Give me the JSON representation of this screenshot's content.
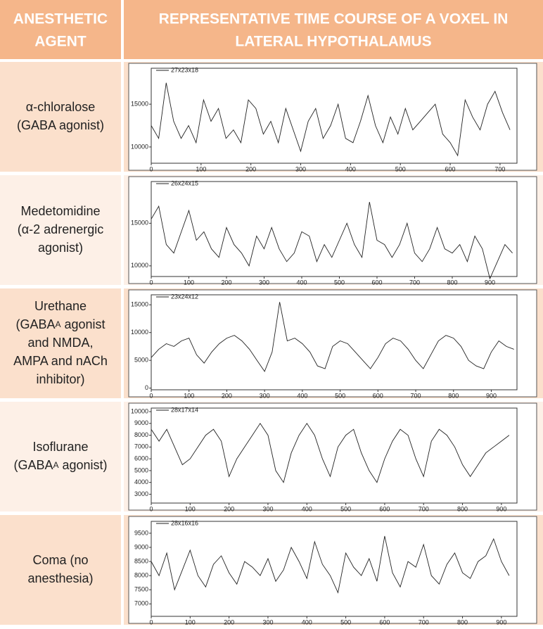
{
  "table": {
    "header": [
      [
        "ANESTHETIC",
        "AGENT"
      ],
      [
        "REPRESENTATIVE TIME COURSE OF A VOXEL IN",
        "LATERAL HYPOTHALAMUS"
      ]
    ],
    "rows": [
      {
        "agent": [
          [
            {
              "text": "α-chloralose"
            }
          ],
          [
            {
              "text": "(GABA agonist)"
            }
          ]
        ],
        "chart": {
          "type": "line",
          "legend": "27x23x18",
          "color": "#222",
          "xlim": [
            0,
            734
          ],
          "xticks": [
            0,
            100,
            200,
            300,
            400,
            500,
            600,
            700
          ],
          "ylim": [
            8100,
            19200
          ],
          "yticks": [
            10000,
            15000
          ],
          "x": [
            0,
            15,
            30,
            45,
            60,
            75,
            90,
            105,
            120,
            135,
            150,
            165,
            180,
            195,
            210,
            225,
            240,
            255,
            270,
            285,
            300,
            315,
            330,
            345,
            360,
            375,
            390,
            405,
            420,
            435,
            450,
            465,
            480,
            495,
            510,
            525,
            540,
            555,
            570,
            585,
            600,
            615,
            630,
            645,
            660,
            675,
            690,
            705,
            720
          ],
          "values": [
            12500,
            11000,
            17500,
            13000,
            11000,
            12500,
            10500,
            15500,
            13000,
            14500,
            11000,
            12000,
            10500,
            15500,
            14500,
            11500,
            13000,
            10500,
            14500,
            12000,
            9500,
            13000,
            14500,
            11000,
            12500,
            15000,
            11000,
            10500,
            13000,
            16000,
            12500,
            10500,
            13500,
            11500,
            14500,
            12000,
            13000,
            14000,
            15000,
            11500,
            10500,
            9000,
            15500,
            13500,
            12000,
            15000,
            16500,
            14000,
            12000
          ]
        }
      },
      {
        "agent": [
          [
            {
              "text": "Medetomidine"
            }
          ],
          [
            {
              "text": "(α-2 adrenergic"
            }
          ],
          [
            {
              "text": "agonist)"
            }
          ]
        ],
        "chart": {
          "type": "line",
          "legend": "26x24x15",
          "color": "#222",
          "xlim": [
            0,
            972
          ],
          "xticks": [
            0,
            100,
            200,
            300,
            400,
            500,
            600,
            700,
            800,
            900
          ],
          "ylim": [
            8750,
            19900
          ],
          "yticks": [
            10000,
            15000
          ],
          "x": [
            0,
            20,
            40,
            60,
            80,
            100,
            120,
            140,
            160,
            180,
            200,
            220,
            240,
            260,
            280,
            300,
            320,
            340,
            360,
            380,
            400,
            420,
            440,
            460,
            480,
            500,
            520,
            540,
            560,
            580,
            600,
            620,
            640,
            660,
            680,
            700,
            720,
            740,
            760,
            780,
            800,
            820,
            840,
            860,
            880,
            900,
            920,
            940,
            960
          ],
          "values": [
            15500,
            17000,
            12500,
            11500,
            14000,
            16500,
            13000,
            14000,
            12000,
            11000,
            14500,
            12500,
            11500,
            10000,
            13500,
            12000,
            14500,
            12000,
            10500,
            11500,
            14000,
            13500,
            10500,
            12500,
            11000,
            13000,
            15000,
            12500,
            11000,
            17500,
            13000,
            12500,
            11000,
            12500,
            15000,
            11500,
            10500,
            12000,
            14500,
            12000,
            11500,
            12500,
            10500,
            13500,
            12000,
            8500,
            10500,
            12500,
            11500
          ]
        }
      },
      {
        "agent": [
          [
            {
              "text": "Urethane"
            }
          ],
          [
            {
              "text": "(GABA"
            },
            {
              "text": "A",
              "small": true
            },
            {
              "text": " agonist"
            }
          ],
          [
            {
              "text": "and NMDA,"
            }
          ],
          [
            {
              "text": "AMPA and nACh"
            }
          ],
          [
            {
              "text": "inhibitor)"
            }
          ]
        ],
        "chart": {
          "type": "line",
          "legend": "23x24x12",
          "color": "#222",
          "xlim": [
            0,
            968
          ],
          "xticks": [
            0,
            100,
            200,
            300,
            400,
            500,
            600,
            700,
            800,
            900
          ],
          "ylim": [
            -300,
            16800
          ],
          "yticks": [
            0,
            5000,
            10000,
            15000
          ],
          "x": [
            0,
            20,
            40,
            60,
            80,
            100,
            120,
            140,
            160,
            180,
            200,
            220,
            240,
            260,
            280,
            300,
            320,
            340,
            360,
            380,
            400,
            420,
            440,
            460,
            480,
            500,
            520,
            540,
            560,
            580,
            600,
            620,
            640,
            660,
            680,
            700,
            720,
            740,
            760,
            780,
            800,
            820,
            840,
            860,
            880,
            900,
            920,
            940,
            960
          ],
          "values": [
            5500,
            7000,
            8000,
            7500,
            8500,
            9000,
            6000,
            4500,
            6500,
            8000,
            9000,
            9500,
            8500,
            7000,
            5000,
            3000,
            6500,
            15500,
            8500,
            9000,
            8000,
            6500,
            4000,
            3500,
            7500,
            8500,
            8000,
            6500,
            5000,
            3500,
            5500,
            8000,
            9000,
            8500,
            7000,
            5000,
            3500,
            6000,
            8500,
            9500,
            9000,
            7500,
            5000,
            4000,
            3500,
            6500,
            8500,
            7500,
            7000
          ]
        }
      },
      {
        "agent": [
          [
            {
              "text": "Isoflurane"
            }
          ],
          [
            {
              "text": "(GABA"
            },
            {
              "text": "A",
              "small": true
            },
            {
              "text": " agonist)"
            }
          ]
        ],
        "chart": {
          "type": "line",
          "legend": "28x17x14",
          "color": "#222",
          "xlim": [
            0,
            940
          ],
          "xticks": [
            0,
            100,
            200,
            300,
            400,
            500,
            600,
            700,
            800,
            900
          ],
          "ylim": [
            2250,
            10300
          ],
          "yticks": [
            3000,
            4000,
            5000,
            6000,
            7000,
            8000,
            9000,
            10000
          ],
          "x": [
            0,
            20,
            40,
            60,
            80,
            100,
            120,
            140,
            160,
            180,
            200,
            220,
            240,
            260,
            280,
            300,
            320,
            340,
            360,
            380,
            400,
            420,
            440,
            460,
            480,
            500,
            520,
            540,
            560,
            580,
            600,
            620,
            640,
            660,
            680,
            700,
            720,
            740,
            760,
            780,
            800,
            820,
            840,
            860,
            880,
            900,
            920
          ],
          "values": [
            8500,
            7500,
            8500,
            7000,
            5500,
            6000,
            7000,
            8000,
            8500,
            7500,
            4500,
            6000,
            7000,
            8000,
            9000,
            8000,
            5000,
            4000,
            6500,
            8000,
            9000,
            8000,
            6000,
            4500,
            7000,
            8000,
            8500,
            6500,
            5000,
            4000,
            6000,
            7500,
            8500,
            8000,
            6000,
            4500,
            7500,
            8500,
            8000,
            7000,
            5500,
            4500,
            5500,
            6500,
            7000,
            7500,
            8000
          ]
        }
      },
      {
        "agent": [
          [
            {
              "text": "Coma (no"
            }
          ],
          [
            {
              "text": "anesthesia)"
            }
          ]
        ],
        "chart": {
          "type": "line",
          "legend": "28x16x16",
          "color": "#222",
          "xlim": [
            0,
            940
          ],
          "xticks": [
            0,
            100,
            200,
            300,
            400,
            500,
            600,
            700,
            800,
            900
          ],
          "ylim": [
            6560,
            9920
          ],
          "yticks": [
            7000,
            7500,
            8000,
            8500,
            9000,
            9500
          ],
          "x": [
            0,
            20,
            40,
            60,
            80,
            100,
            120,
            140,
            160,
            180,
            200,
            220,
            240,
            260,
            280,
            300,
            320,
            340,
            360,
            380,
            400,
            420,
            440,
            460,
            480,
            500,
            520,
            540,
            560,
            580,
            600,
            620,
            640,
            660,
            680,
            700,
            720,
            740,
            760,
            780,
            800,
            820,
            840,
            860,
            880,
            900,
            920
          ],
          "values": [
            8500,
            8000,
            8800,
            7500,
            8200,
            8900,
            8000,
            7600,
            8400,
            8700,
            8100,
            7700,
            8500,
            8300,
            8000,
            8600,
            7800,
            8200,
            9000,
            8500,
            7900,
            9200,
            8400,
            8000,
            7400,
            8800,
            8300,
            8000,
            8600,
            7800,
            9400,
            8100,
            7600,
            8500,
            8300,
            9100,
            8000,
            7700,
            8400,
            8800,
            8100,
            7900,
            8500,
            8700,
            9300,
            8500,
            8000
          ]
        }
      }
    ]
  }
}
